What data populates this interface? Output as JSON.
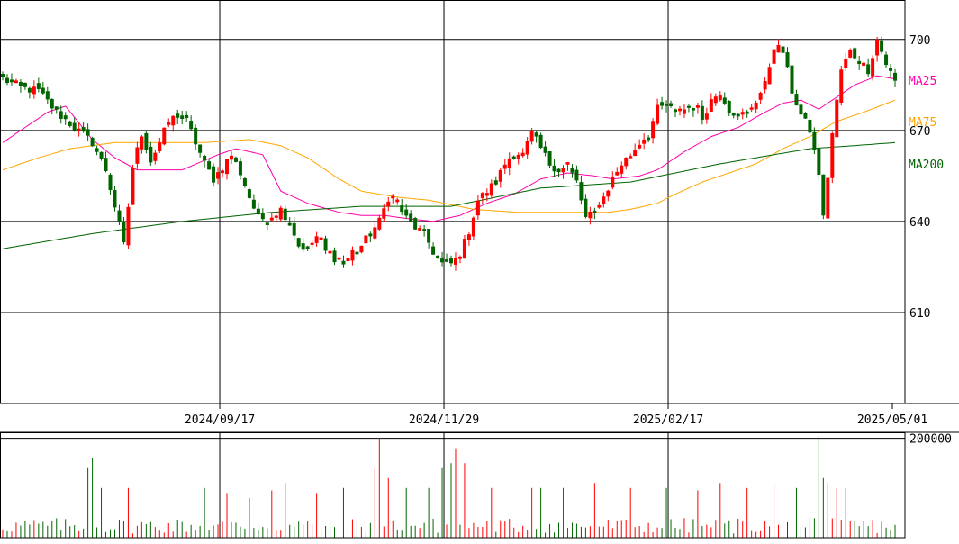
{
  "chart_data": [
    {
      "type": "candlestick",
      "panel": "price",
      "y_ticks": [
        "700",
        "670",
        "640",
        "610"
      ],
      "y_tick_values": [
        700,
        670,
        640,
        610
      ],
      "ylim": [
        580,
        713
      ],
      "x_tick_labels": [
        "2024/09/17",
        "2024/11/29",
        "2025/02/17",
        "2025/05/01"
      ],
      "bar_count": 200,
      "x_tick_bar_index": [
        49,
        99,
        149,
        199
      ],
      "grid": true,
      "up_color": "#ff0000",
      "down_color": "#006400",
      "anchors": [
        [
          0,
          687
        ],
        [
          4,
          684
        ],
        [
          8,
          683
        ],
        [
          12,
          676
        ],
        [
          16,
          671
        ],
        [
          20,
          666
        ],
        [
          23,
          657
        ],
        [
          25,
          645
        ],
        [
          27,
          632
        ],
        [
          29,
          658
        ],
        [
          31,
          669
        ],
        [
          33,
          660
        ],
        [
          35,
          666
        ],
        [
          37,
          673
        ],
        [
          39,
          675
        ],
        [
          41,
          673
        ],
        [
          43,
          666
        ],
        [
          45,
          659
        ],
        [
          47,
          654
        ],
        [
          49,
          658
        ],
        [
          51,
          662
        ],
        [
          53,
          656
        ],
        [
          55,
          648
        ],
        [
          57,
          641
        ],
        [
          59,
          641
        ],
        [
          62,
          644
        ],
        [
          64,
          640
        ],
        [
          66,
          632
        ],
        [
          68,
          631
        ],
        [
          70,
          635
        ],
        [
          72,
          630
        ],
        [
          74,
          628
        ],
        [
          76,
          626
        ],
        [
          78,
          630
        ],
        [
          80,
          632
        ],
        [
          82,
          636
        ],
        [
          84,
          640
        ],
        [
          86,
          648
        ],
        [
          88,
          646
        ],
        [
          90,
          641
        ],
        [
          92,
          638
        ],
        [
          94,
          636
        ],
        [
          96,
          630
        ],
        [
          98,
          626
        ],
        [
          100,
          626
        ],
        [
          102,
          629
        ],
        [
          104,
          637
        ],
        [
          106,
          647
        ],
        [
          108,
          650
        ],
        [
          110,
          653
        ],
        [
          112,
          659
        ],
        [
          114,
          663
        ],
        [
          116,
          662
        ],
        [
          118,
          669
        ],
        [
          120,
          664
        ],
        [
          122,
          659
        ],
        [
          124,
          657
        ],
        [
          126,
          658
        ],
        [
          128,
          653
        ],
        [
          130,
          641
        ],
        [
          132,
          643
        ],
        [
          134,
          648
        ],
        [
          136,
          654
        ],
        [
          138,
          659
        ],
        [
          140,
          662
        ],
        [
          142,
          666
        ],
        [
          144,
          669
        ],
        [
          146,
          677
        ],
        [
          148,
          678
        ],
        [
          150,
          676
        ],
        [
          152,
          677
        ],
        [
          154,
          678
        ],
        [
          156,
          674
        ],
        [
          158,
          680
        ],
        [
          160,
          683
        ],
        [
          162,
          677
        ],
        [
          164,
          675
        ],
        [
          166,
          676
        ],
        [
          168,
          680
        ],
        [
          170,
          685
        ],
        [
          172,
          698
        ],
        [
          174,
          696
        ],
        [
          176,
          683
        ],
        [
          178,
          675
        ],
        [
          180,
          670
        ],
        [
          182,
          656
        ],
        [
          183,
          641
        ],
        [
          185,
          669
        ],
        [
          187,
          690
        ],
        [
          189,
          696
        ],
        [
          191,
          693
        ],
        [
          193,
          690
        ],
        [
          195,
          700
        ],
        [
          197,
          692
        ],
        [
          199,
          686
        ]
      ],
      "series": [
        {
          "name": "MA25",
          "color": "#ff00aa",
          "anchors": [
            [
              0,
              666
            ],
            [
              10,
              676
            ],
            [
              14,
              678
            ],
            [
              20,
              667
            ],
            [
              25,
              661
            ],
            [
              30,
              657
            ],
            [
              40,
              657
            ],
            [
              48,
              662
            ],
            [
              52,
              664
            ],
            [
              58,
              662
            ],
            [
              62,
              650
            ],
            [
              68,
              646
            ],
            [
              75,
              643
            ],
            [
              80,
              642
            ],
            [
              85,
              642
            ],
            [
              90,
              641
            ],
            [
              96,
              640
            ],
            [
              102,
              642
            ],
            [
              108,
              646
            ],
            [
              114,
              649
            ],
            [
              120,
              654
            ],
            [
              126,
              656
            ],
            [
              132,
              655
            ],
            [
              136,
              654
            ],
            [
              142,
              655
            ],
            [
              146,
              657
            ],
            [
              152,
              663
            ],
            [
              158,
              668
            ],
            [
              164,
              671
            ],
            [
              170,
              676
            ],
            [
              174,
              679
            ],
            [
              178,
              680
            ],
            [
              182,
              677
            ],
            [
              186,
              681
            ],
            [
              190,
              685
            ],
            [
              195,
              688
            ],
            [
              199,
              687
            ]
          ]
        },
        {
          "name": "MA75",
          "color": "#ffa500",
          "anchors": [
            [
              0,
              657
            ],
            [
              8,
              661
            ],
            [
              15,
              664
            ],
            [
              25,
              666
            ],
            [
              35,
              666
            ],
            [
              45,
              666
            ],
            [
              55,
              667
            ],
            [
              62,
              665
            ],
            [
              68,
              661
            ],
            [
              75,
              654
            ],
            [
              80,
              650
            ],
            [
              88,
              648
            ],
            [
              95,
              647
            ],
            [
              105,
              644
            ],
            [
              115,
              643
            ],
            [
              125,
              643
            ],
            [
              135,
              643
            ],
            [
              140,
              644
            ],
            [
              146,
              646
            ],
            [
              150,
              649
            ],
            [
              156,
              653
            ],
            [
              162,
              656
            ],
            [
              168,
              659
            ],
            [
              174,
              664
            ],
            [
              180,
              668
            ],
            [
              186,
              673
            ],
            [
              192,
              676
            ],
            [
              199,
              680
            ]
          ]
        },
        {
          "name": "MA200",
          "color": "#006400",
          "anchors": [
            [
              0,
              631
            ],
            [
              20,
              636
            ],
            [
              40,
              640
            ],
            [
              60,
              643
            ],
            [
              80,
              645
            ],
            [
              100,
              645
            ],
            [
              120,
              651
            ],
            [
              140,
              653
            ],
            [
              160,
              659
            ],
            [
              180,
              664
            ],
            [
              190,
              665
            ],
            [
              199,
              666
            ]
          ]
        }
      ]
    },
    {
      "type": "bar",
      "panel": "volume",
      "y_ticks": [
        "200000"
      ],
      "y_tick_values": [
        200000
      ],
      "ylim": [
        0,
        212000
      ],
      "bar_count": 200,
      "spikes": [
        [
          19,
          140000
        ],
        [
          20,
          160000
        ],
        [
          22,
          100000
        ],
        [
          28,
          100000
        ],
        [
          45,
          100000
        ],
        [
          50,
          90000
        ],
        [
          55,
          80000
        ],
        [
          60,
          95000
        ],
        [
          63,
          110000
        ],
        [
          70,
          90000
        ],
        [
          76,
          100000
        ],
        [
          83,
          140000
        ],
        [
          84,
          200000
        ],
        [
          86,
          120000
        ],
        [
          90,
          100000
        ],
        [
          95,
          100000
        ],
        [
          98,
          140000
        ],
        [
          100,
          150000
        ],
        [
          101,
          180000
        ],
        [
          103,
          150000
        ],
        [
          109,
          100000
        ],
        [
          118,
          100000
        ],
        [
          120,
          100000
        ],
        [
          125,
          100000
        ],
        [
          132,
          110000
        ],
        [
          140,
          100000
        ],
        [
          148,
          100000
        ],
        [
          155,
          95000
        ],
        [
          160,
          110000
        ],
        [
          166,
          100000
        ],
        [
          172,
          110000
        ],
        [
          177,
          100000
        ],
        [
          182,
          205000
        ],
        [
          183,
          120000
        ],
        [
          184,
          110000
        ],
        [
          186,
          100000
        ],
        [
          188,
          100000
        ]
      ]
    }
  ],
  "legend": {
    "ma25": "MA25",
    "ma75": "MA75",
    "ma200": "MA200"
  },
  "colors": {
    "ma25": "#ff00aa",
    "ma75": "#ffa500",
    "ma200": "#006400",
    "up": "#ff0000",
    "down": "#006400"
  }
}
